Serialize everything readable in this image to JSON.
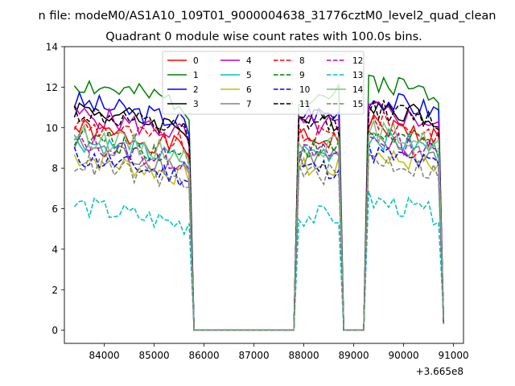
{
  "chart_data": {
    "type": "line",
    "suptitle": "n file: modeM0/AS1A10_109T01_9000004638_31776cztM0_level2_quad_clean",
    "title": "Quadrant 0 module wise count rates with 100.0s bins.",
    "xlabel": "",
    "ylabel": "",
    "x_offset_label": "+3.665e8",
    "xlim": [
      83200,
      91200
    ],
    "ylim": [
      -0.65,
      14
    ],
    "xticks": [
      84000,
      85000,
      86000,
      87000,
      88000,
      89000,
      90000,
      91000
    ],
    "xtick_labels": [
      "84000",
      "85000",
      "86000",
      "87000",
      "88000",
      "89000",
      "90000",
      "91000"
    ],
    "yticks": [
      0,
      2,
      4,
      6,
      8,
      10,
      12,
      14
    ],
    "ytick_labels": [
      "0",
      "2",
      "4",
      "6",
      "8",
      "10",
      "12",
      "14"
    ],
    "grid": false,
    "legend_placement": "upper-center",
    "segments": [
      {
        "start": 83400,
        "count": 24
      },
      {
        "start": 85800,
        "count": 21
      },
      {
        "start": 87900,
        "count": 9
      },
      {
        "start": 88800,
        "count": 5
      },
      {
        "start": 89300,
        "count": 16
      }
    ],
    "series": [
      {
        "name": "0",
        "color": "#ff0000",
        "dash": "solid",
        "base": 10.0,
        "seed": 1
      },
      {
        "name": "1",
        "color": "#008000",
        "dash": "solid",
        "base": 12.2,
        "seed": 2
      },
      {
        "name": "2",
        "color": "#0000ff",
        "dash": "solid",
        "base": 11.3,
        "seed": 3
      },
      {
        "name": "3",
        "color": "#000000",
        "dash": "solid",
        "base": 11.0,
        "seed": 4
      },
      {
        "name": "4",
        "color": "#bf00bf",
        "dash": "solid",
        "base": 10.7,
        "seed": 5
      },
      {
        "name": "5",
        "color": "#00bfbf",
        "dash": "solid",
        "base": 9.4,
        "seed": 6
      },
      {
        "name": "6",
        "color": "#bfbf00",
        "dash": "solid",
        "base": 8.6,
        "seed": 7
      },
      {
        "name": "7",
        "color": "#808080",
        "dash": "solid",
        "base": 9.1,
        "seed": 8
      },
      {
        "name": "8",
        "color": "#ff0000",
        "dash": "dashed",
        "base": 10.2,
        "seed": 9
      },
      {
        "name": "9",
        "color": "#008000",
        "dash": "dashed",
        "base": 9.6,
        "seed": 10
      },
      {
        "name": "10",
        "color": "#0000ff",
        "dash": "dashed",
        "base": 8.6,
        "seed": 11
      },
      {
        "name": "11",
        "color": "#000000",
        "dash": "dashed",
        "base": 10.8,
        "seed": 12
      },
      {
        "name": "12",
        "color": "#bf00bf",
        "dash": "dashed",
        "base": 9.3,
        "seed": 13
      },
      {
        "name": "13",
        "color": "#00bfbf",
        "dash": "dashed",
        "base": 6.2,
        "seed": 14
      },
      {
        "name": "14",
        "color": "#7fbf7f",
        "dash": "solid",
        "base": 9.7,
        "seed": 15
      },
      {
        "name": "15",
        "color": "#808080",
        "dash": "dashed",
        "base": 8.3,
        "seed": 16
      }
    ]
  }
}
